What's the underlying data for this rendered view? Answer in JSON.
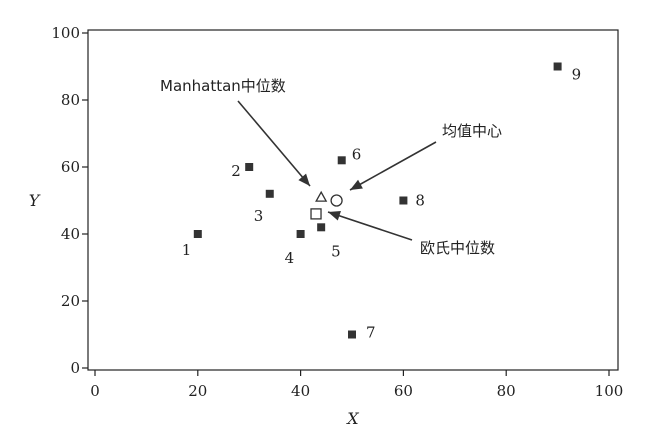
{
  "chart_data": {
    "type": "scatter",
    "xlabel": "X",
    "ylabel": "Y",
    "xlim": [
      0,
      100
    ],
    "ylim": [
      0,
      100
    ],
    "x_ticks": [
      0,
      20,
      40,
      60,
      80,
      100
    ],
    "y_ticks": [
      0,
      20,
      40,
      60,
      80,
      100
    ],
    "grid": false,
    "points": [
      {
        "label": "1",
        "x": 20,
        "y": 40
      },
      {
        "label": "2",
        "x": 30,
        "y": 60
      },
      {
        "label": "3",
        "x": 34,
        "y": 52
      },
      {
        "label": "4",
        "x": 40,
        "y": 40
      },
      {
        "label": "5",
        "x": 44,
        "y": 42
      },
      {
        "label": "6",
        "x": 48,
        "y": 62
      },
      {
        "label": "7",
        "x": 50,
        "y": 10
      },
      {
        "label": "8",
        "x": 60,
        "y": 50
      },
      {
        "label": "9",
        "x": 90,
        "y": 90
      }
    ],
    "markers": [
      {
        "name": "manhattan-median",
        "shape": "triangle",
        "x": 44,
        "y": 51
      },
      {
        "name": "euclidean-median",
        "shape": "square",
        "x": 43,
        "y": 46
      },
      {
        "name": "mean-center",
        "shape": "circle",
        "x": 47,
        "y": 50
      }
    ],
    "annotations": [
      {
        "text": "Manhattan中位数",
        "target": "manhattan-median"
      },
      {
        "text": "均值中心",
        "target": "mean-center"
      },
      {
        "text": "欧氏中位数",
        "target": "euclidean-median"
      }
    ]
  }
}
